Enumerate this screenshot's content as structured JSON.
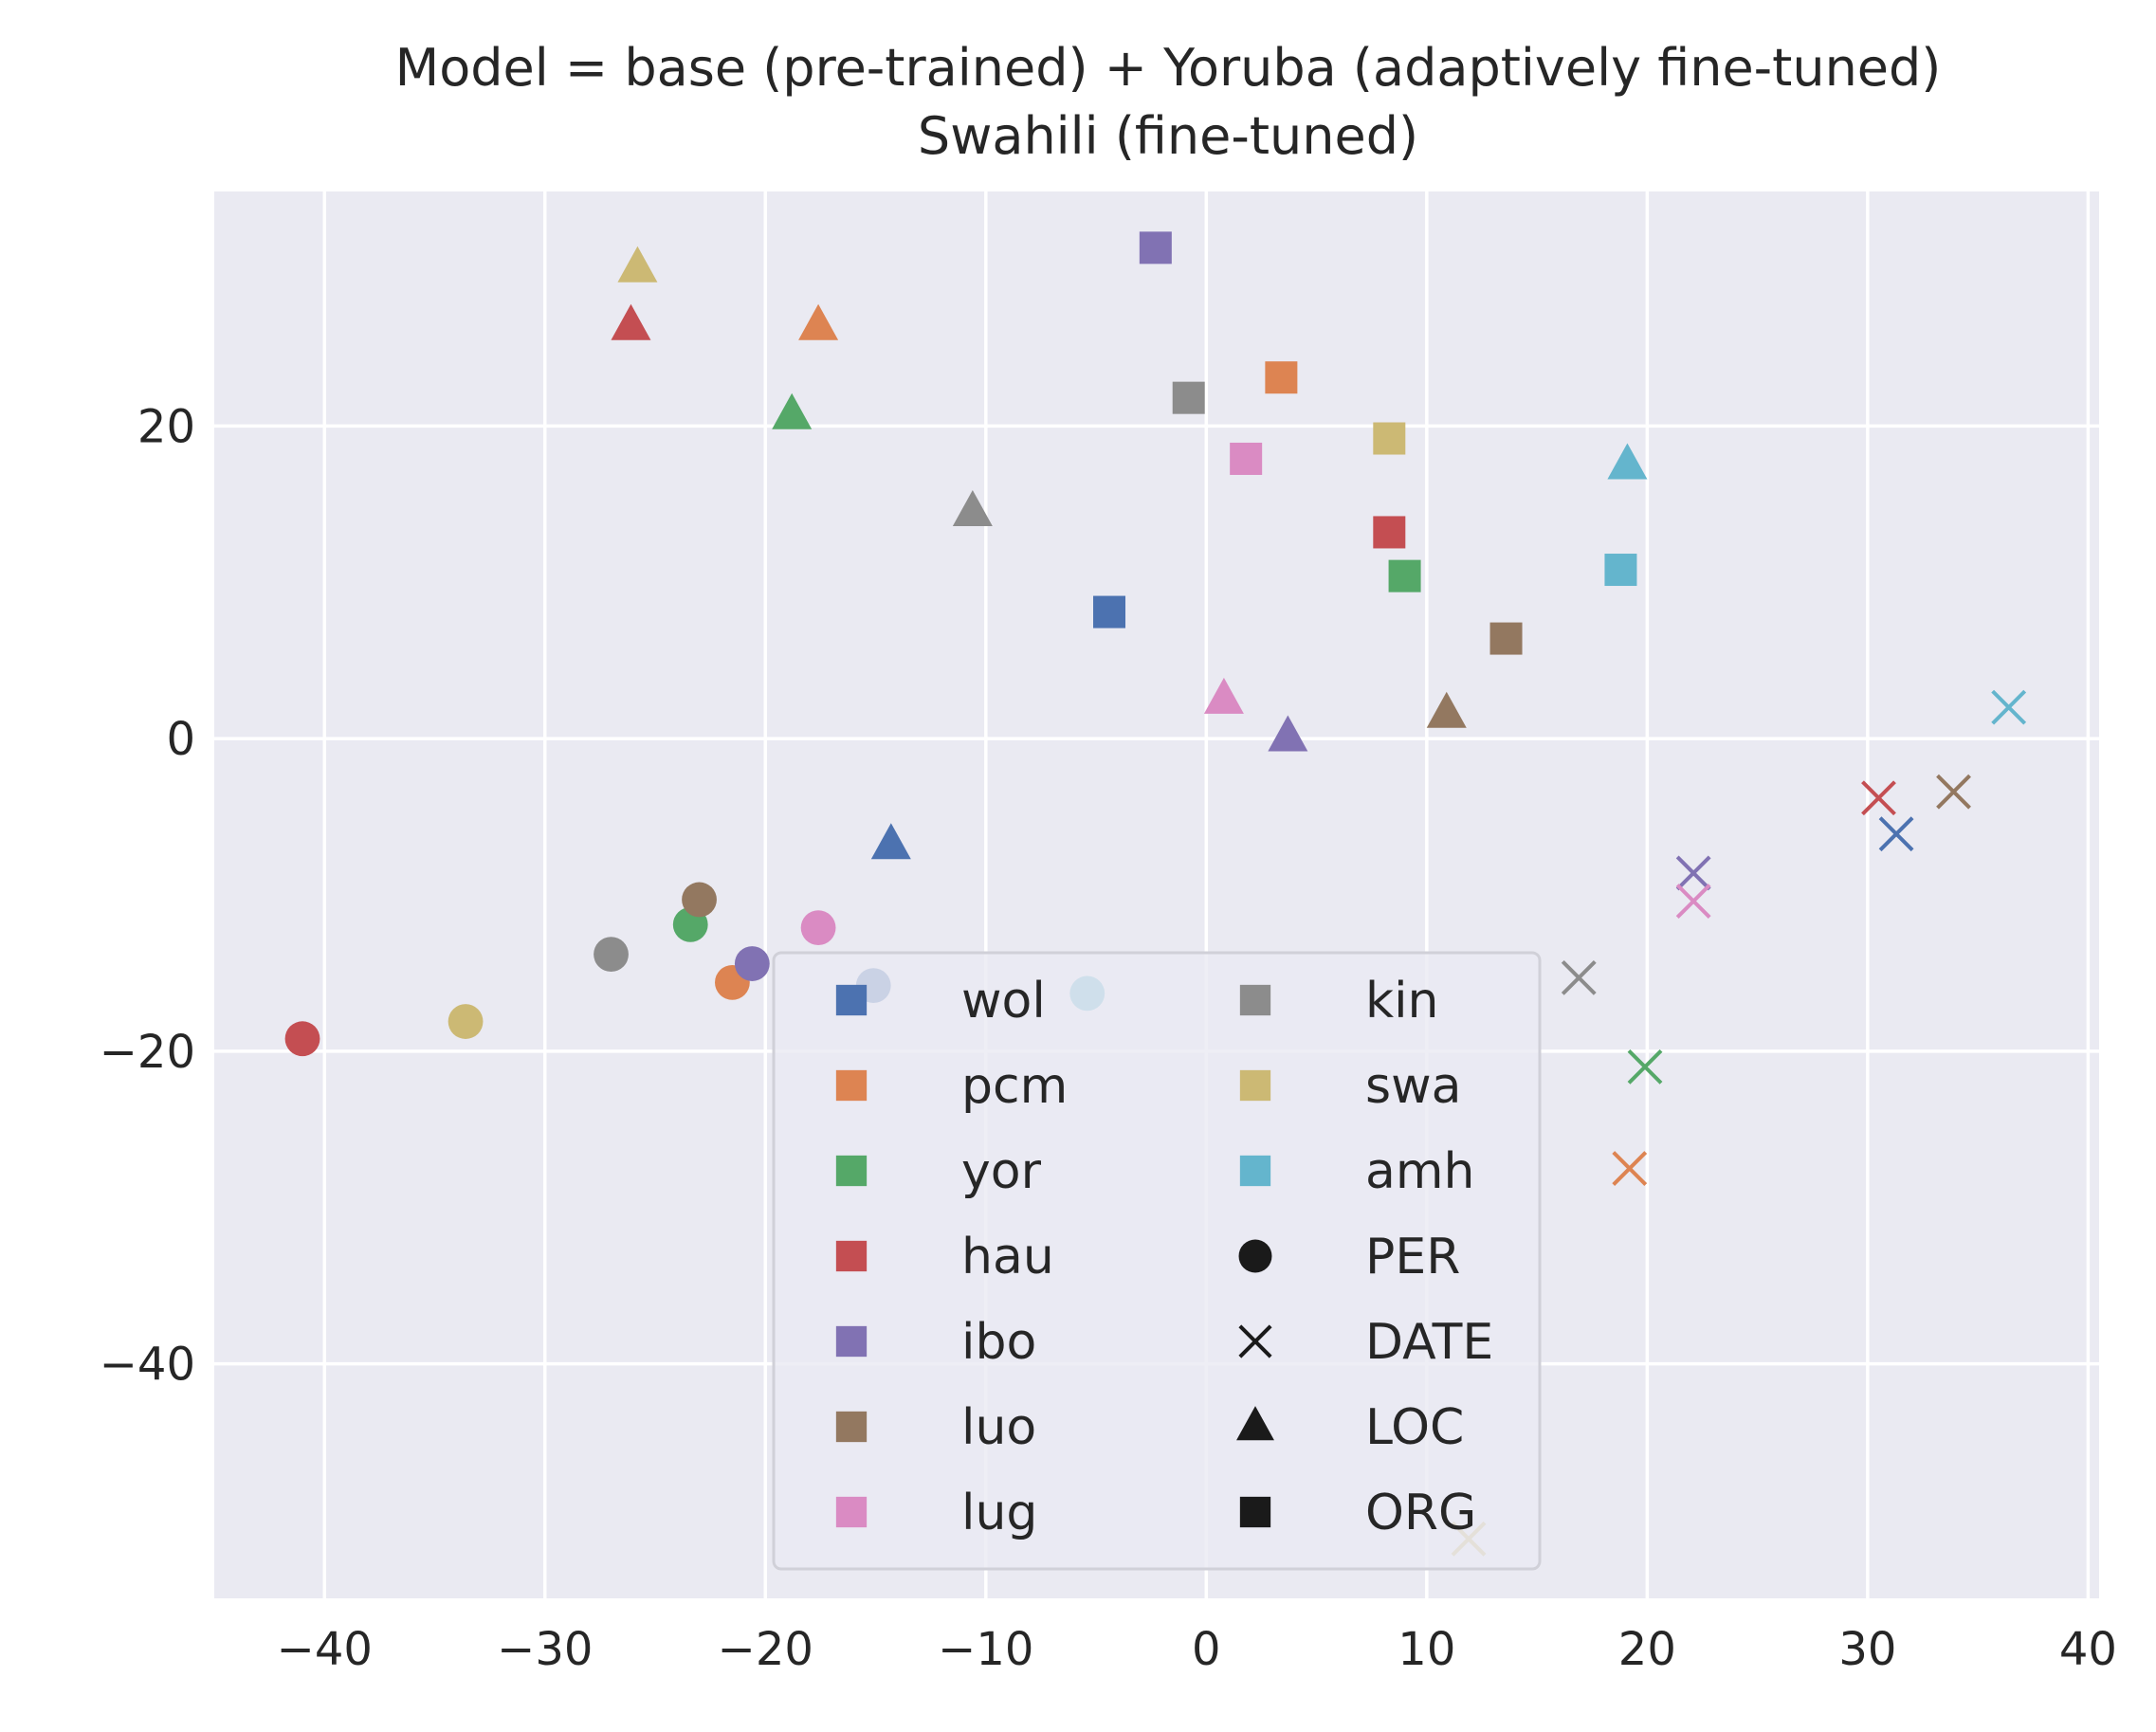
{
  "chart_data": {
    "type": "scatter",
    "title": "Model = base (pre-trained) + Yoruba (adaptively fine-tuned)",
    "subtitle": "Swahili (fine-tuned)",
    "xlim": [
      -45,
      40.5
    ],
    "ylim": [
      -55,
      35
    ],
    "xticks": [
      -40,
      -30,
      -20,
      -10,
      0,
      10,
      20,
      30,
      40
    ],
    "xtick_labels": [
      "−40",
      "−30",
      "−20",
      "−10",
      "0",
      "10",
      "20",
      "30",
      "40"
    ],
    "yticks": [
      -40,
      -20,
      0,
      20
    ],
    "ytick_labels": [
      "−40",
      "−20",
      "0",
      "20"
    ],
    "grid": true,
    "legend_position": "lower-center",
    "languages": [
      {
        "code": "wol",
        "color": "#4c72b0"
      },
      {
        "code": "pcm",
        "color": "#dd8452"
      },
      {
        "code": "yor",
        "color": "#55a868"
      },
      {
        "code": "hau",
        "color": "#c44e52"
      },
      {
        "code": "ibo",
        "color": "#8172b3"
      },
      {
        "code": "luo",
        "color": "#937860"
      },
      {
        "code": "lug",
        "color": "#da8bc3"
      },
      {
        "code": "kin",
        "color": "#8c8c8c"
      },
      {
        "code": "swa",
        "color": "#ccb974"
      },
      {
        "code": "amh",
        "color": "#64b5cd"
      }
    ],
    "entity_types": [
      {
        "label": "PER",
        "marker": "circle"
      },
      {
        "label": "DATE",
        "marker": "x"
      },
      {
        "label": "LOC",
        "marker": "triangle"
      },
      {
        "label": "ORG",
        "marker": "square"
      }
    ],
    "legend_color": "#1a1a1a",
    "points": [
      {
        "lang": "wol",
        "type": "ORG",
        "x": -4.4,
        "y": 8.1
      },
      {
        "lang": "pcm",
        "type": "ORG",
        "x": 3.4,
        "y": 23.1
      },
      {
        "lang": "yor",
        "type": "ORG",
        "x": 9.0,
        "y": 10.4
      },
      {
        "lang": "hau",
        "type": "ORG",
        "x": 8.3,
        "y": 13.2
      },
      {
        "lang": "ibo",
        "type": "ORG",
        "x": -2.3,
        "y": 31.4
      },
      {
        "lang": "luo",
        "type": "ORG",
        "x": 13.6,
        "y": 6.4
      },
      {
        "lang": "lug",
        "type": "ORG",
        "x": 1.8,
        "y": 17.9
      },
      {
        "lang": "kin",
        "type": "ORG",
        "x": -0.8,
        "y": 21.8
      },
      {
        "lang": "swa",
        "type": "ORG",
        "x": 8.3,
        "y": 19.2
      },
      {
        "lang": "amh",
        "type": "ORG",
        "x": 18.8,
        "y": 10.8
      },
      {
        "lang": "wol",
        "type": "LOC",
        "x": -14.3,
        "y": -6.8
      },
      {
        "lang": "pcm",
        "type": "LOC",
        "x": -17.6,
        "y": 26.4
      },
      {
        "lang": "yor",
        "type": "LOC",
        "x": -18.8,
        "y": 20.7
      },
      {
        "lang": "hau",
        "type": "LOC",
        "x": -26.1,
        "y": 26.4
      },
      {
        "lang": "ibo",
        "type": "LOC",
        "x": 3.7,
        "y": 0.1
      },
      {
        "lang": "luo",
        "type": "LOC",
        "x": 10.9,
        "y": 1.6
      },
      {
        "lang": "lug",
        "type": "LOC",
        "x": 0.8,
        "y": 2.5
      },
      {
        "lang": "kin",
        "type": "LOC",
        "x": -10.6,
        "y": 14.5
      },
      {
        "lang": "swa",
        "type": "LOC",
        "x": -25.8,
        "y": 30.1
      },
      {
        "lang": "amh",
        "type": "LOC",
        "x": 19.1,
        "y": 17.5
      },
      {
        "lang": "wol",
        "type": "PER",
        "x": -15.1,
        "y": -15.8
      },
      {
        "lang": "pcm",
        "type": "PER",
        "x": -21.5,
        "y": -15.6
      },
      {
        "lang": "yor",
        "type": "PER",
        "x": -23.4,
        "y": -11.9
      },
      {
        "lang": "hau",
        "type": "PER",
        "x": -41.0,
        "y": -19.2
      },
      {
        "lang": "ibo",
        "type": "PER",
        "x": -20.6,
        "y": -14.4
      },
      {
        "lang": "luo",
        "type": "PER",
        "x": -23.0,
        "y": -10.3
      },
      {
        "lang": "lug",
        "type": "PER",
        "x": -17.6,
        "y": -12.1
      },
      {
        "lang": "kin",
        "type": "PER",
        "x": -27.0,
        "y": -13.8
      },
      {
        "lang": "swa",
        "type": "PER",
        "x": -33.6,
        "y": -18.1
      },
      {
        "lang": "amh",
        "type": "PER",
        "x": -5.4,
        "y": -16.3
      },
      {
        "lang": "wol",
        "type": "DATE",
        "x": 31.3,
        "y": -6.1
      },
      {
        "lang": "pcm",
        "type": "DATE",
        "x": 19.2,
        "y": -27.5
      },
      {
        "lang": "yor",
        "type": "DATE",
        "x": 19.9,
        "y": -21.0
      },
      {
        "lang": "hau",
        "type": "DATE",
        "x": 30.5,
        "y": -3.8
      },
      {
        "lang": "ibo",
        "type": "DATE",
        "x": 22.1,
        "y": -8.6
      },
      {
        "lang": "luo",
        "type": "DATE",
        "x": 33.9,
        "y": -3.4
      },
      {
        "lang": "lug",
        "type": "DATE",
        "x": 22.1,
        "y": -10.4
      },
      {
        "lang": "kin",
        "type": "DATE",
        "x": 16.9,
        "y": -15.3
      },
      {
        "lang": "swa",
        "type": "DATE",
        "x": 11.9,
        "y": -51.2
      },
      {
        "lang": "amh",
        "type": "DATE",
        "x": 36.4,
        "y": 2.0
      }
    ]
  }
}
